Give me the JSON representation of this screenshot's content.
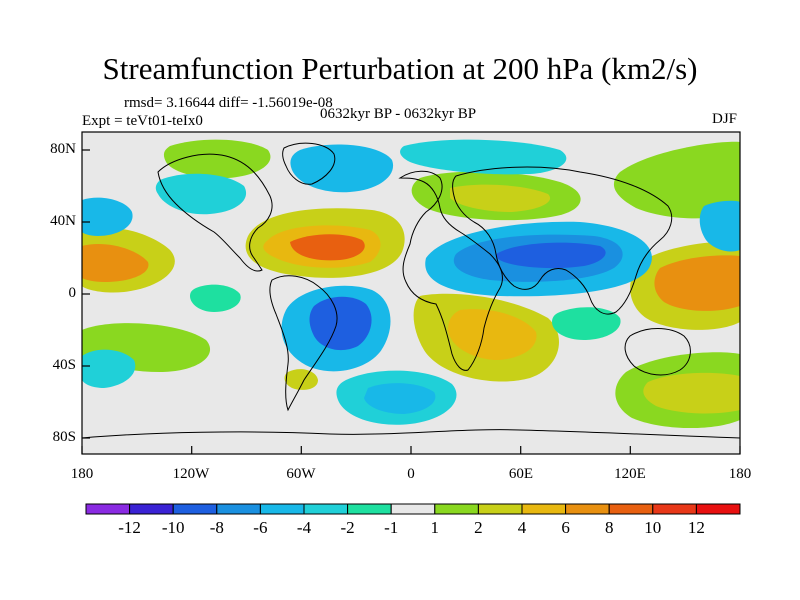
{
  "title": "Streamfunction Perturbation at 200 hPa (km2/s)",
  "stats": "rmsd= 3.16644 diff= -1.56019e-08",
  "period": "0632kyr BP - 0632kyr BP",
  "experiment": "Expt = teVt01-teIx0",
  "season": "DJF",
  "map": {
    "longitude_range": [
      -180,
      180
    ],
    "latitude_range": [
      -90,
      90
    ],
    "x_ticks": [
      "180",
      "120W",
      "60W",
      "0",
      "60E",
      "120E",
      "180"
    ],
    "y_ticks": [
      "80N",
      "40N",
      "0",
      "40S",
      "80S"
    ],
    "background_color": "#e8e8e8"
  },
  "colorbar": {
    "labels": [
      "-12",
      "-10",
      "-8",
      "-6",
      "-4",
      "-2",
      "-1",
      "1",
      "2",
      "4",
      "6",
      "8",
      "10",
      "12"
    ],
    "colors": [
      "#8a2be2",
      "#3a22d4",
      "#1e5fe0",
      "#1a90e0",
      "#18b8e8",
      "#20d0d8",
      "#1ee0a0",
      "#e8e8e8",
      "#8ad820",
      "#c8d018",
      "#e8b810",
      "#e89010",
      "#e86010",
      "#e83818",
      "#e81010"
    ]
  }
}
